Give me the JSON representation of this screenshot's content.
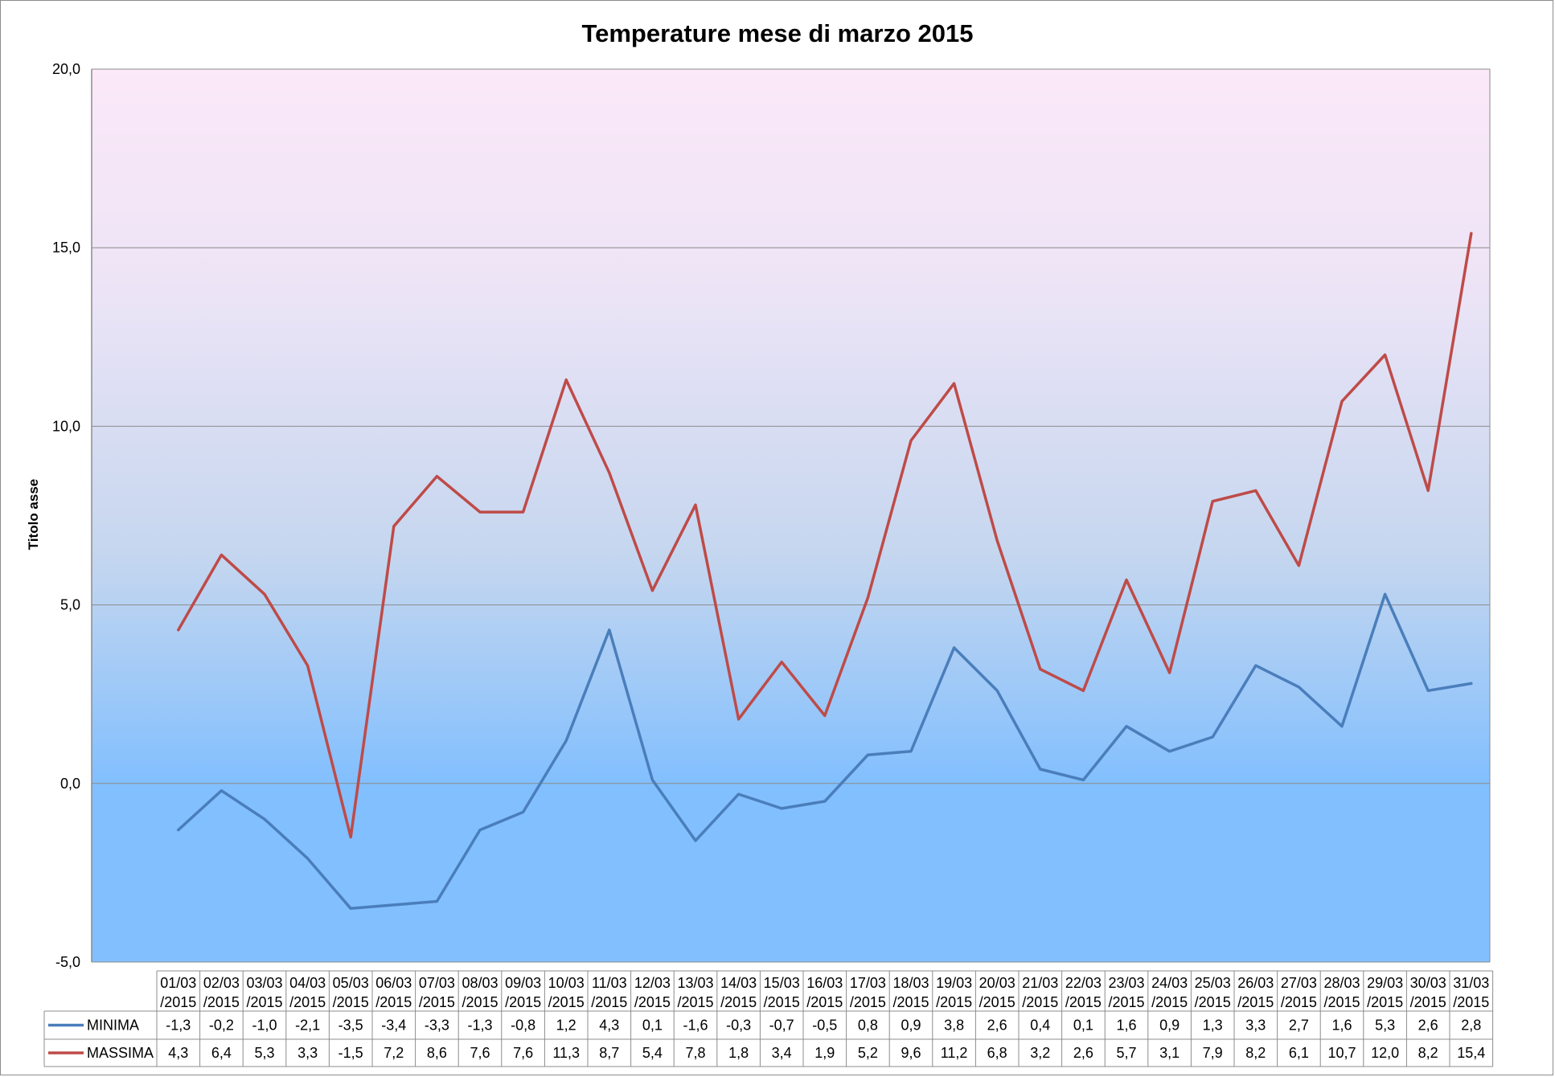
{
  "chart_data": {
    "type": "line",
    "title": "Temperature mese di marzo 2015",
    "xlabel": "",
    "ylabel": "Titolo asse",
    "ylim": [
      -5,
      20
    ],
    "yticks": [
      "-5,0",
      "0,0",
      "5,0",
      "10,0",
      "15,0",
      "20,0"
    ],
    "grid": true,
    "legend": "table-left",
    "categories": [
      [
        "01/03",
        "/2015"
      ],
      [
        "02/03",
        "/2015"
      ],
      [
        "03/03",
        "/2015"
      ],
      [
        "04/03",
        "/2015"
      ],
      [
        "05/03",
        "/2015"
      ],
      [
        "06/03",
        "/2015"
      ],
      [
        "07/03",
        "/2015"
      ],
      [
        "08/03",
        "/2015"
      ],
      [
        "09/03",
        "/2015"
      ],
      [
        "10/03",
        "/2015"
      ],
      [
        "11/03",
        "/2015"
      ],
      [
        "12/03",
        "/2015"
      ],
      [
        "13/03",
        "/2015"
      ],
      [
        "14/03",
        "/2015"
      ],
      [
        "15/03",
        "/2015"
      ],
      [
        "16/03",
        "/2015"
      ],
      [
        "17/03",
        "/2015"
      ],
      [
        "18/03",
        "/2015"
      ],
      [
        "19/03",
        "/2015"
      ],
      [
        "20/03",
        "/2015"
      ],
      [
        "21/03",
        "/2015"
      ],
      [
        "22/03",
        "/2015"
      ],
      [
        "23/03",
        "/2015"
      ],
      [
        "24/03",
        "/2015"
      ],
      [
        "25/03",
        "/2015"
      ],
      [
        "26/03",
        "/2015"
      ],
      [
        "27/03",
        "/2015"
      ],
      [
        "28/03",
        "/2015"
      ],
      [
        "29/03",
        "/2015"
      ],
      [
        "30/03",
        "/2015"
      ],
      [
        "31/03",
        "/2015"
      ]
    ],
    "series": [
      {
        "name": "MINIMA",
        "color": "#4a7ebb",
        "values": [
          -1.3,
          -0.2,
          -1.0,
          -2.1,
          -3.5,
          -3.4,
          -3.3,
          -1.3,
          -0.8,
          1.2,
          4.3,
          0.1,
          -1.6,
          -0.3,
          -0.7,
          -0.5,
          0.8,
          0.9,
          3.8,
          2.6,
          0.4,
          0.1,
          1.6,
          0.9,
          1.3,
          3.3,
          2.7,
          1.6,
          5.3,
          2.6,
          2.8
        ],
        "labels": [
          "-1,3",
          "-0,2",
          "-1,0",
          "-2,1",
          "-3,5",
          "-3,4",
          "-3,3",
          "-1,3",
          "-0,8",
          "1,2",
          "4,3",
          "0,1",
          "-1,6",
          "-0,3",
          "-0,7",
          "-0,5",
          "0,8",
          "0,9",
          "3,8",
          "2,6",
          "0,4",
          "0,1",
          "1,6",
          "0,9",
          "1,3",
          "3,3",
          "2,7",
          "1,6",
          "5,3",
          "2,6",
          "2,8"
        ]
      },
      {
        "name": "MASSIMA",
        "color": "#be4b48",
        "values": [
          4.3,
          6.4,
          5.3,
          3.3,
          -1.5,
          7.2,
          8.6,
          7.6,
          7.6,
          11.3,
          8.7,
          5.4,
          7.8,
          1.8,
          3.4,
          1.9,
          5.2,
          9.6,
          11.2,
          6.8,
          3.2,
          2.6,
          5.7,
          3.1,
          7.9,
          8.2,
          6.1,
          10.7,
          12.0,
          8.2,
          15.4
        ],
        "labels": [
          "4,3",
          "6,4",
          "5,3",
          "3,3",
          "-1,5",
          "7,2",
          "8,6",
          "7,6",
          "7,6",
          "11,3",
          "8,7",
          "5,4",
          "7,8",
          "1,8",
          "3,4",
          "1,9",
          "5,2",
          "9,6",
          "11,2",
          "6,8",
          "3,2",
          "2,6",
          "5,7",
          "3,1",
          "7,9",
          "8,2",
          "6,1",
          "10,7",
          "12,0",
          "8,2",
          "15,4"
        ]
      }
    ],
    "colors": {
      "plot_top": "#fbe8f8",
      "plot_bottom": "#82bffe",
      "grid": "#8c8c8c"
    }
  }
}
